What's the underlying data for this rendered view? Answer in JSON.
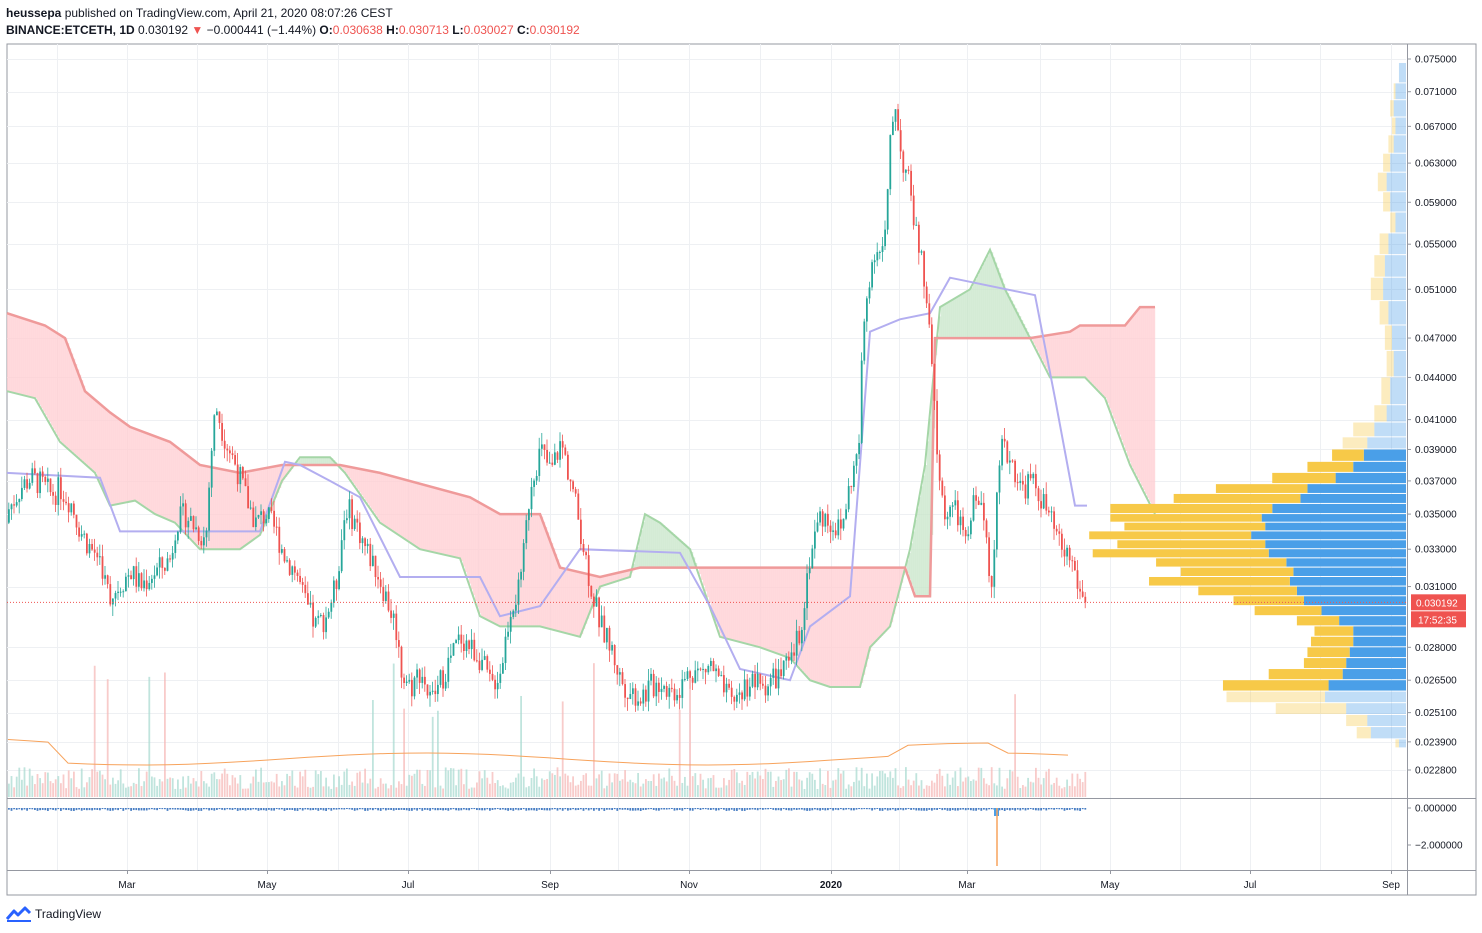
{
  "header": {
    "publisher": "heussepa",
    "published_text": "published on TradingView.com, April 21, 2020 08:07:26 CEST",
    "symbol": "BINANCE:ETCETH, 1D",
    "last": "0.030192",
    "arrow": "▼",
    "change": "−0.000441 (−1.44%)",
    "o_label": "O:",
    "o_value": "0.030638",
    "h_label": "H:",
    "h_value": "0.030713",
    "l_label": "L:",
    "l_value": "0.030027",
    "c_label": "C:",
    "c_value": "0.030192"
  },
  "price_badge": {
    "value": "0.030192",
    "countdown": "17:52:35"
  },
  "footer": {
    "brand": "TradingView",
    "logo_icon": "tradingview-logo-icon"
  },
  "colors": {
    "up": "#26a69a",
    "down": "#ef5350",
    "accent_blue": "#2962ff",
    "vp_up": "#f7c948",
    "vp_down": "#4a9fe8",
    "cloud_bear": "#ffcdd2",
    "cloud_bull": "#c8e6c9"
  },
  "chart_data": {
    "type": "candlestick",
    "symbol": "BINANCE:ETCETH",
    "interval": "1D",
    "y_ticks": [
      "0.075000",
      "0.071000",
      "0.067000",
      "0.063000",
      "0.059000",
      "0.055000",
      "0.051000",
      "0.047000",
      "0.044000",
      "0.041000",
      "0.039000",
      "0.037000",
      "0.035000",
      "0.033000",
      "0.031000",
      "0.028000",
      "0.026500",
      "0.025100",
      "0.023900",
      "0.022800"
    ],
    "x_ticks": [
      "Mar",
      "May",
      "Jul",
      "Sep",
      "Nov",
      "2020",
      "Mar",
      "May",
      "Jul",
      "Sep"
    ],
    "indicator_ticks": [
      "0.000000",
      "−2.000000"
    ],
    "ylim": [
      0.0222,
      0.077
    ],
    "current_price": 0.030192,
    "price_path": [
      [
        0,
        0.0345
      ],
      [
        10,
        0.0355
      ],
      [
        20,
        0.0366
      ],
      [
        30,
        0.0372
      ],
      [
        40,
        0.0368
      ],
      [
        50,
        0.0362
      ],
      [
        60,
        0.0365
      ],
      [
        70,
        0.0357
      ],
      [
        80,
        0.034
      ],
      [
        90,
        0.033
      ],
      [
        100,
        0.0325
      ],
      [
        105,
        0.031
      ],
      [
        110,
        0.0305
      ],
      [
        120,
        0.0312
      ],
      [
        130,
        0.0318
      ],
      [
        140,
        0.031
      ],
      [
        150,
        0.0316
      ],
      [
        160,
        0.032
      ],
      [
        170,
        0.0325
      ],
      [
        175,
        0.0345
      ],
      [
        185,
        0.035
      ],
      [
        195,
        0.0342
      ],
      [
        205,
        0.0335
      ],
      [
        210,
        0.0385
      ],
      [
        215,
        0.042
      ],
      [
        225,
        0.0395
      ],
      [
        235,
        0.038
      ],
      [
        245,
        0.036
      ],
      [
        255,
        0.0345
      ],
      [
        265,
        0.035
      ],
      [
        275,
        0.034
      ],
      [
        285,
        0.0325
      ],
      [
        295,
        0.0318
      ],
      [
        305,
        0.03
      ],
      [
        315,
        0.029
      ],
      [
        325,
        0.0295
      ],
      [
        335,
        0.031
      ],
      [
        345,
        0.0355
      ],
      [
        355,
        0.0345
      ],
      [
        365,
        0.033
      ],
      [
        375,
        0.032
      ],
      [
        385,
        0.0305
      ],
      [
        395,
        0.029
      ],
      [
        400,
        0.027
      ],
      [
        410,
        0.0262
      ],
      [
        420,
        0.027
      ],
      [
        430,
        0.0255
      ],
      [
        440,
        0.0265
      ],
      [
        450,
        0.0275
      ],
      [
        460,
        0.0285
      ],
      [
        470,
        0.028
      ],
      [
        480,
        0.0275
      ],
      [
        490,
        0.0262
      ],
      [
        500,
        0.027
      ],
      [
        510,
        0.03
      ],
      [
        520,
        0.031
      ],
      [
        530,
        0.037
      ],
      [
        540,
        0.039
      ],
      [
        550,
        0.0375
      ],
      [
        560,
        0.0395
      ],
      [
        570,
        0.037
      ],
      [
        580,
        0.034
      ],
      [
        590,
        0.031
      ],
      [
        600,
        0.029
      ],
      [
        610,
        0.028
      ],
      [
        620,
        0.0265
      ],
      [
        630,
        0.026
      ],
      [
        640,
        0.0258
      ],
      [
        650,
        0.0262
      ],
      [
        660,
        0.0265
      ],
      [
        670,
        0.026
      ],
      [
        680,
        0.0262
      ],
      [
        690,
        0.027
      ],
      [
        700,
        0.0268
      ],
      [
        710,
        0.0272
      ],
      [
        720,
        0.0262
      ],
      [
        730,
        0.0255
      ],
      [
        740,
        0.026
      ],
      [
        750,
        0.0265
      ],
      [
        760,
        0.0262
      ],
      [
        770,
        0.0265
      ],
      [
        780,
        0.0268
      ],
      [
        790,
        0.0272
      ],
      [
        800,
        0.029
      ],
      [
        810,
        0.033
      ],
      [
        820,
        0.035
      ],
      [
        830,
        0.0345
      ],
      [
        840,
        0.034
      ],
      [
        850,
        0.037
      ],
      [
        858,
        0.039
      ],
      [
        862,
        0.047
      ],
      [
        868,
        0.052
      ],
      [
        875,
        0.055
      ],
      [
        880,
        0.054
      ],
      [
        885,
        0.056
      ],
      [
        890,
        0.066
      ],
      [
        895,
        0.07
      ],
      [
        900,
        0.064
      ],
      [
        905,
        0.062
      ],
      [
        910,
        0.06
      ],
      [
        915,
        0.056
      ],
      [
        920,
        0.054
      ],
      [
        925,
        0.05
      ],
      [
        930,
        0.046
      ],
      [
        935,
        0.04
      ],
      [
        940,
        0.036
      ],
      [
        945,
        0.035
      ],
      [
        950,
        0.0355
      ],
      [
        960,
        0.0345
      ],
      [
        965,
        0.033
      ],
      [
        975,
        0.0365
      ],
      [
        985,
        0.034
      ],
      [
        990,
        0.031
      ],
      [
        995,
        0.035
      ],
      [
        1000,
        0.039
      ],
      [
        1010,
        0.0385
      ],
      [
        1020,
        0.0365
      ],
      [
        1030,
        0.037
      ],
      [
        1040,
        0.036
      ],
      [
        1050,
        0.0345
      ],
      [
        1060,
        0.033
      ],
      [
        1070,
        0.0325
      ],
      [
        1080,
        0.0305
      ],
      [
        1087,
        0.0302
      ]
    ],
    "ichimoku": {
      "span_a": [
        [
          7,
          0.043
        ],
        [
          35,
          0.0425
        ],
        [
          60,
          0.0395
        ],
        [
          95,
          0.0375
        ],
        [
          110,
          0.0355
        ],
        [
          135,
          0.0358
        ],
        [
          155,
          0.035
        ],
        [
          175,
          0.0345
        ],
        [
          200,
          0.033
        ],
        [
          240,
          0.033
        ],
        [
          260,
          0.0338
        ],
        [
          282,
          0.037
        ],
        [
          300,
          0.0385
        ],
        [
          330,
          0.0385
        ],
        [
          345,
          0.0375
        ],
        [
          380,
          0.0345
        ],
        [
          420,
          0.033
        ],
        [
          460,
          0.0325
        ],
        [
          480,
          0.0295
        ],
        [
          500,
          0.029
        ],
        [
          540,
          0.029
        ],
        [
          580,
          0.0285
        ],
        [
          600,
          0.031
        ],
        [
          630,
          0.0315
        ],
        [
          645,
          0.035
        ],
        [
          660,
          0.0345
        ],
        [
          690,
          0.033
        ],
        [
          720,
          0.0285
        ],
        [
          760,
          0.028
        ],
        [
          790,
          0.0275
        ],
        [
          810,
          0.0265
        ],
        [
          830,
          0.0262
        ],
        [
          860,
          0.0262
        ],
        [
          870,
          0.028
        ],
        [
          890,
          0.029
        ],
        [
          910,
          0.033
        ],
        [
          925,
          0.038
        ],
        [
          940,
          0.0495
        ],
        [
          970,
          0.051
        ],
        [
          990,
          0.0545
        ],
        [
          1005,
          0.051
        ],
        [
          1030,
          0.047
        ],
        [
          1050,
          0.044
        ],
        [
          1065,
          0.044
        ],
        [
          1085,
          0.044
        ],
        [
          1105,
          0.0425
        ],
        [
          1130,
          0.038
        ],
        [
          1155,
          0.035
        ]
      ],
      "span_b": [
        [
          7,
          0.049
        ],
        [
          45,
          0.048
        ],
        [
          65,
          0.047
        ],
        [
          85,
          0.043
        ],
        [
          110,
          0.0415
        ],
        [
          130,
          0.0405
        ],
        [
          170,
          0.0395
        ],
        [
          200,
          0.038
        ],
        [
          240,
          0.0375
        ],
        [
          282,
          0.038
        ],
        [
          340,
          0.038
        ],
        [
          380,
          0.0375
        ],
        [
          470,
          0.036
        ],
        [
          500,
          0.035
        ],
        [
          540,
          0.035
        ],
        [
          560,
          0.032
        ],
        [
          600,
          0.0315
        ],
        [
          640,
          0.032
        ],
        [
          700,
          0.032
        ],
        [
          800,
          0.032
        ],
        [
          905,
          0.032
        ],
        [
          915,
          0.0305
        ],
        [
          930,
          0.0305
        ],
        [
          935,
          0.047
        ],
        [
          1030,
          0.047
        ],
        [
          1070,
          0.0475
        ],
        [
          1080,
          0.048
        ],
        [
          1125,
          0.048
        ],
        [
          1140,
          0.0495
        ],
        [
          1155,
          0.0495
        ]
      ],
      "base": [
        [
          7,
          0.0375
        ],
        [
          100,
          0.0372
        ],
        [
          120,
          0.034
        ],
        [
          260,
          0.034
        ],
        [
          285,
          0.0382
        ],
        [
          300,
          0.038
        ],
        [
          330,
          0.037
        ],
        [
          360,
          0.036
        ],
        [
          400,
          0.0315
        ],
        [
          480,
          0.0315
        ],
        [
          500,
          0.0295
        ],
        [
          540,
          0.03
        ],
        [
          580,
          0.033
        ],
        [
          680,
          0.0328
        ],
        [
          710,
          0.03
        ],
        [
          740,
          0.027
        ],
        [
          790,
          0.0265
        ],
        [
          810,
          0.029
        ],
        [
          850,
          0.0305
        ],
        [
          870,
          0.0475
        ],
        [
          900,
          0.0485
        ],
        [
          930,
          0.049
        ],
        [
          950,
          0.052
        ],
        [
          1035,
          0.0505
        ],
        [
          1055,
          0.0425
        ],
        [
          1075,
          0.0355
        ],
        [
          1087,
          0.0355
        ]
      ]
    },
    "volume_profile": {
      "rows": [
        {
          "price": 0.0745,
          "up": 0.0,
          "down": 0.04
        },
        {
          "price": 0.072,
          "up": 0.01,
          "down": 0.06
        },
        {
          "price": 0.07,
          "up": 0.02,
          "down": 0.07
        },
        {
          "price": 0.068,
          "up": 0.02,
          "down": 0.06
        },
        {
          "price": 0.066,
          "up": 0.03,
          "down": 0.07
        },
        {
          "price": 0.064,
          "up": 0.04,
          "down": 0.09
        },
        {
          "price": 0.062,
          "up": 0.05,
          "down": 0.11
        },
        {
          "price": 0.06,
          "up": 0.04,
          "down": 0.09
        },
        {
          "price": 0.058,
          "up": 0.03,
          "down": 0.06
        },
        {
          "price": 0.056,
          "up": 0.05,
          "down": 0.1
        },
        {
          "price": 0.054,
          "up": 0.06,
          "down": 0.12
        },
        {
          "price": 0.052,
          "up": 0.07,
          "down": 0.13
        },
        {
          "price": 0.05,
          "up": 0.05,
          "down": 0.1
        },
        {
          "price": 0.048,
          "up": 0.04,
          "down": 0.08
        },
        {
          "price": 0.046,
          "up": 0.04,
          "down": 0.07
        },
        {
          "price": 0.044,
          "up": 0.05,
          "down": 0.09
        },
        {
          "price": 0.042,
          "up": 0.07,
          "down": 0.11
        },
        {
          "price": 0.0408,
          "up": 0.12,
          "down": 0.18
        },
        {
          "price": 0.0398,
          "up": 0.14,
          "down": 0.22
        },
        {
          "price": 0.039,
          "up": 0.18,
          "down": 0.24
        },
        {
          "price": 0.0382,
          "up": 0.26,
          "down": 0.3
        },
        {
          "price": 0.0375,
          "up": 0.36,
          "down": 0.4
        },
        {
          "price": 0.0368,
          "up": 0.52,
          "down": 0.56
        },
        {
          "price": 0.0362,
          "up": 0.72,
          "down": 0.6
        },
        {
          "price": 0.0356,
          "up": 0.92,
          "down": 0.76
        },
        {
          "price": 0.035,
          "up": 0.86,
          "down": 0.82
        },
        {
          "price": 0.0345,
          "up": 0.8,
          "down": 0.8
        },
        {
          "price": 0.034,
          "up": 0.92,
          "down": 0.88
        },
        {
          "price": 0.0335,
          "up": 0.84,
          "down": 0.8
        },
        {
          "price": 0.033,
          "up": 1.0,
          "down": 0.78
        },
        {
          "price": 0.0325,
          "up": 0.74,
          "down": 0.68
        },
        {
          "price": 0.032,
          "up": 0.64,
          "down": 0.64
        },
        {
          "price": 0.0315,
          "up": 0.8,
          "down": 0.66
        },
        {
          "price": 0.031,
          "up": 0.56,
          "down": 0.62
        },
        {
          "price": 0.0305,
          "up": 0.4,
          "down": 0.58
        },
        {
          "price": 0.03,
          "up": 0.38,
          "down": 0.48
        },
        {
          "price": 0.0295,
          "up": 0.24,
          "down": 0.38
        },
        {
          "price": 0.029,
          "up": 0.22,
          "down": 0.3
        },
        {
          "price": 0.0285,
          "up": 0.24,
          "down": 0.3
        },
        {
          "price": 0.028,
          "up": 0.24,
          "down": 0.32
        },
        {
          "price": 0.0275,
          "up": 0.24,
          "down": 0.34
        },
        {
          "price": 0.027,
          "up": 0.42,
          "down": 0.36
        },
        {
          "price": 0.0265,
          "up": 0.6,
          "down": 0.44
        },
        {
          "price": 0.026,
          "up": 0.56,
          "down": 0.46
        },
        {
          "price": 0.0255,
          "up": 0.4,
          "down": 0.34
        },
        {
          "price": 0.025,
          "up": 0.12,
          "down": 0.22
        },
        {
          "price": 0.0245,
          "up": 0.08,
          "down": 0.2
        },
        {
          "price": 0.024,
          "up": 0.02,
          "down": 0.04
        }
      ],
      "active_price_range": [
        0.0262,
        0.0395
      ]
    }
  }
}
